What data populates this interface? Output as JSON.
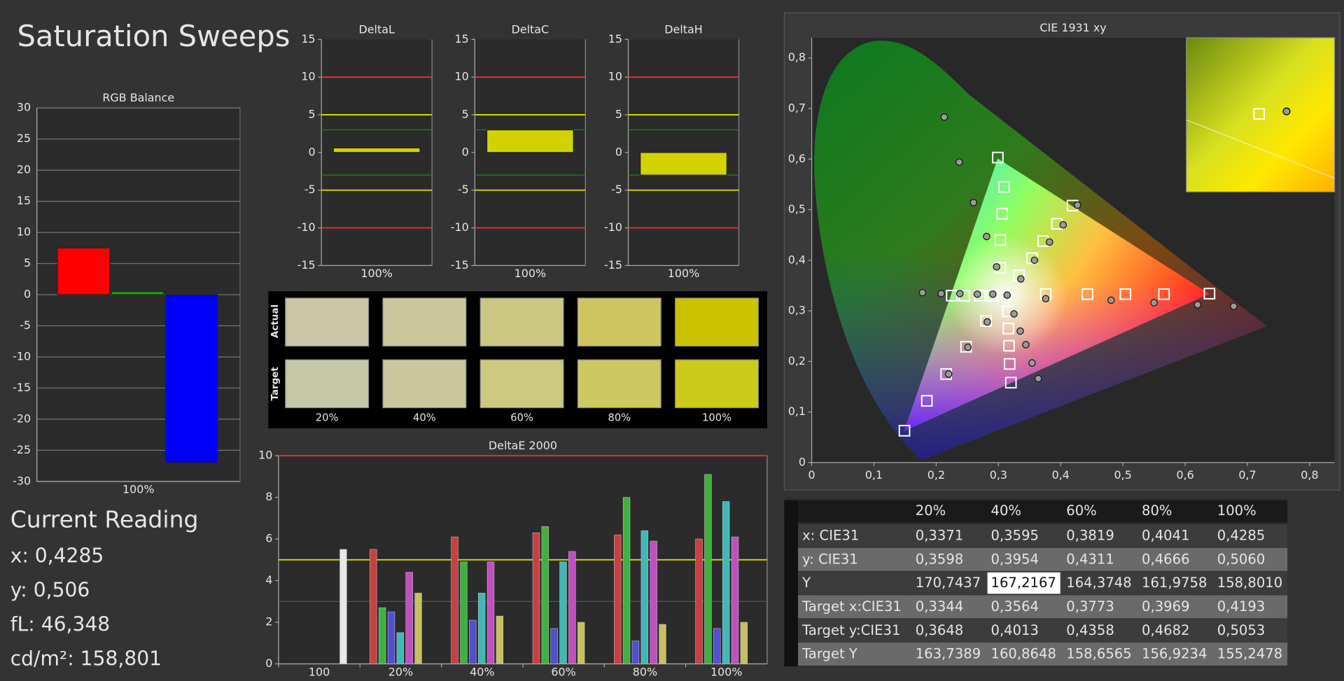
{
  "title": "Saturation Sweeps",
  "chart_data": [
    {
      "type": "bar",
      "title": "RGB Balance",
      "categories": [
        "100%"
      ],
      "series": [
        {
          "color": "#ff0000",
          "values": [
            7.5
          ]
        },
        {
          "color": "#1aa01a",
          "values": [
            0.5
          ]
        },
        {
          "color": "#0000ff",
          "values": [
            -27
          ]
        }
      ],
      "ylim": [
        -30,
        30
      ],
      "yticks": [
        -30,
        -25,
        -20,
        -15,
        -10,
        -5,
        0,
        5,
        10,
        15,
        20,
        25,
        30
      ],
      "grid": true
    },
    {
      "type": "bar",
      "title": "DeltaL",
      "categories": [
        "100%"
      ],
      "values": [
        0.6
      ],
      "color": "#d2d200",
      "ylim": [
        -15,
        15
      ],
      "yticks": [
        -15,
        -10,
        -5,
        0,
        5,
        10,
        15
      ],
      "reference_lines": [
        {
          "value": 10,
          "color": "#e03030"
        },
        {
          "value": -10,
          "color": "#e03030"
        },
        {
          "value": 5,
          "color": "#d8d800"
        },
        {
          "value": -5,
          "color": "#d8d800"
        },
        {
          "value": 3,
          "color": "#1a8a1a"
        },
        {
          "value": -3,
          "color": "#1a8a1a"
        }
      ]
    },
    {
      "type": "bar",
      "title": "DeltaC",
      "categories": [
        "100%"
      ],
      "values": [
        3.0
      ],
      "color": "#d2d200",
      "ylim": [
        -15,
        15
      ],
      "yticks": [
        -15,
        -10,
        -5,
        0,
        5,
        10,
        15
      ],
      "reference_lines": [
        {
          "value": 10,
          "color": "#e03030"
        },
        {
          "value": -10,
          "color": "#e03030"
        },
        {
          "value": 5,
          "color": "#d8d800"
        },
        {
          "value": -5,
          "color": "#d8d800"
        },
        {
          "value": 3,
          "color": "#1a8a1a"
        },
        {
          "value": -3,
          "color": "#1a8a1a"
        }
      ]
    },
    {
      "type": "bar",
      "title": "DeltaH",
      "categories": [
        "100%"
      ],
      "values": [
        -3.0
      ],
      "color": "#d2d200",
      "ylim": [
        -15,
        15
      ],
      "yticks": [
        -15,
        -10,
        -5,
        0,
        5,
        10,
        15
      ],
      "reference_lines": [
        {
          "value": 10,
          "color": "#e03030"
        },
        {
          "value": -10,
          "color": "#e03030"
        },
        {
          "value": 5,
          "color": "#d8d800"
        },
        {
          "value": -5,
          "color": "#d8d800"
        },
        {
          "value": 3,
          "color": "#1a8a1a"
        },
        {
          "value": -3,
          "color": "#1a8a1a"
        }
      ]
    },
    {
      "type": "grouped_bar",
      "title": "DeltaE 2000",
      "categories": [
        "100",
        "20%",
        "40%",
        "60%",
        "80%",
        "100%"
      ],
      "series": [
        {
          "color": "#e8e8e8",
          "values": [
            5.5,
            null,
            null,
            null,
            null,
            null
          ]
        },
        {
          "color": "#c84040",
          "values": [
            null,
            5.5,
            6.1,
            6.3,
            6.2,
            6.0
          ]
        },
        {
          "color": "#40b040",
          "values": [
            null,
            2.7,
            4.9,
            6.6,
            8.0,
            9.1
          ]
        },
        {
          "color": "#5050d0",
          "values": [
            null,
            2.5,
            2.1,
            1.7,
            1.1,
            1.7
          ]
        },
        {
          "color": "#40b8b8",
          "values": [
            null,
            1.5,
            3.4,
            4.9,
            6.4,
            7.8
          ]
        },
        {
          "color": "#c050c0",
          "values": [
            null,
            4.4,
            4.9,
            5.4,
            5.9,
            6.1
          ]
        },
        {
          "color": "#c8c060",
          "values": [
            null,
            3.4,
            2.3,
            2.0,
            1.9,
            2.0
          ]
        }
      ],
      "ylim": [
        0,
        10
      ],
      "yticks": [
        0,
        2,
        4,
        6,
        8,
        10
      ],
      "reference_lines": [
        {
          "value": 10,
          "color": "#e03030"
        },
        {
          "value": 5,
          "color": "#d8d800"
        },
        {
          "value": 3,
          "color": "#1a8a1a"
        }
      ]
    },
    {
      "type": "scatter",
      "title": "CIE 1931 xy",
      "xlim": [
        0,
        0.84
      ],
      "ylim": [
        0,
        0.84
      ],
      "xticks": [
        0,
        {
          "value": 0.1,
          "label": "0,1"
        },
        {
          "value": 0.2,
          "label": "0,2"
        },
        {
          "value": 0.3,
          "label": "0,3"
        },
        {
          "value": 0.4,
          "label": "0,4"
        },
        {
          "value": 0.5,
          "label": "0,5"
        },
        {
          "value": 0.6,
          "label": "0,6"
        },
        {
          "value": 0.7,
          "label": "0,7"
        },
        {
          "value": 0.8,
          "label": "0,8"
        }
      ],
      "yticks": [
        0,
        {
          "value": 0.1,
          "label": "0,1"
        },
        {
          "value": 0.2,
          "label": "0,2"
        },
        {
          "value": 0.3,
          "label": "0,3"
        },
        {
          "value": 0.4,
          "label": "0,4"
        },
        {
          "value": 0.5,
          "label": "0,5"
        },
        {
          "value": 0.6,
          "label": "0,6"
        },
        {
          "value": 0.7,
          "label": "0,7"
        },
        {
          "value": 0.8,
          "label": "0,8"
        }
      ],
      "series": [
        {
          "marker": "square",
          "color": "#ffffff",
          "x": [
            0.313,
            0.376,
            0.443,
            0.504,
            0.566,
            0.639,
            0.303,
            0.303,
            0.306,
            0.309,
            0.299,
            0.185,
            0.216,
            0.248,
            0.28,
            0.149,
            0.225,
            0.245,
            0.27,
            0.29,
            0.32,
            0.318,
            0.317,
            0.316,
            0.315,
            0.333,
            0.354,
            0.372,
            0.394,
            0.419
          ],
          "values": [
            0.329,
            0.333,
            0.333,
            0.333,
            0.333,
            0.334,
            0.385,
            0.44,
            0.492,
            0.545,
            0.603,
            0.122,
            0.175,
            0.229,
            0.28,
            0.063,
            0.33,
            0.33,
            0.33,
            0.33,
            0.158,
            0.195,
            0.231,
            0.265,
            0.299,
            0.37,
            0.404,
            0.438,
            0.472,
            0.508
          ]
        },
        {
          "marker": "circle",
          "color": "#9a9a9a",
          "x": [
            0.213,
            0.237,
            0.26,
            0.281,
            0.297,
            0.314,
            0.376,
            0.481,
            0.55,
            0.62,
            0.678,
            0.336,
            0.358,
            0.382,
            0.404,
            0.427,
            0.178,
            0.208,
            0.238,
            0.266,
            0.291,
            0.22,
            0.251,
            0.282,
            0.325,
            0.335,
            0.344,
            0.354,
            0.364
          ],
          "values": [
            0.683,
            0.594,
            0.514,
            0.447,
            0.387,
            0.331,
            0.324,
            0.321,
            0.316,
            0.312,
            0.309,
            0.363,
            0.4,
            0.436,
            0.47,
            0.509,
            0.336,
            0.334,
            0.334,
            0.333,
            0.333,
            0.175,
            0.228,
            0.278,
            0.294,
            0.26,
            0.233,
            0.197,
            0.166
          ]
        }
      ]
    }
  ],
  "swatches": {
    "row_labels": [
      "Actual",
      "Target"
    ],
    "columns": [
      "20%",
      "40%",
      "60%",
      "80%",
      "100%"
    ],
    "actual_colors": [
      "#cbc6a8",
      "#cbc79a",
      "#cdc784",
      "#cec55e",
      "#cbc300"
    ],
    "target_colors": [
      "#c6c9a8",
      "#cac89a",
      "#cdc97f",
      "#cdc85f",
      "#cccb1a"
    ]
  },
  "current_reading": {
    "title": "Current Reading",
    "lines": [
      "x: 0,4285",
      "y: 0,506",
      "fL: 46,348",
      "cd/m²: 158,801"
    ]
  },
  "table": {
    "header": [
      "20%",
      "40%",
      "60%",
      "80%",
      "100%"
    ],
    "rows": [
      [
        "x: CIE31",
        "0,3371",
        "0,3595",
        "0,3819",
        "0,4041",
        "0,4285"
      ],
      [
        "y: CIE31",
        "0,3598",
        "0,3954",
        "0,4311",
        "0,4666",
        "0,5060"
      ],
      [
        "Y",
        "170,7437",
        "167,2167",
        "164,3748",
        "161,9758",
        "158,8010"
      ],
      [
        "Target x:CIE31",
        "0,3344",
        "0,3564",
        "0,3773",
        "0,3969",
        "0,4193"
      ],
      [
        "Target y:CIE31",
        "0,3648",
        "0,4013",
        "0,4358",
        "0,4682",
        "0,5053"
      ],
      [
        "Target Y",
        "163,7389",
        "160,8648",
        "158,6565",
        "156,9234",
        "155,2478"
      ]
    ]
  }
}
